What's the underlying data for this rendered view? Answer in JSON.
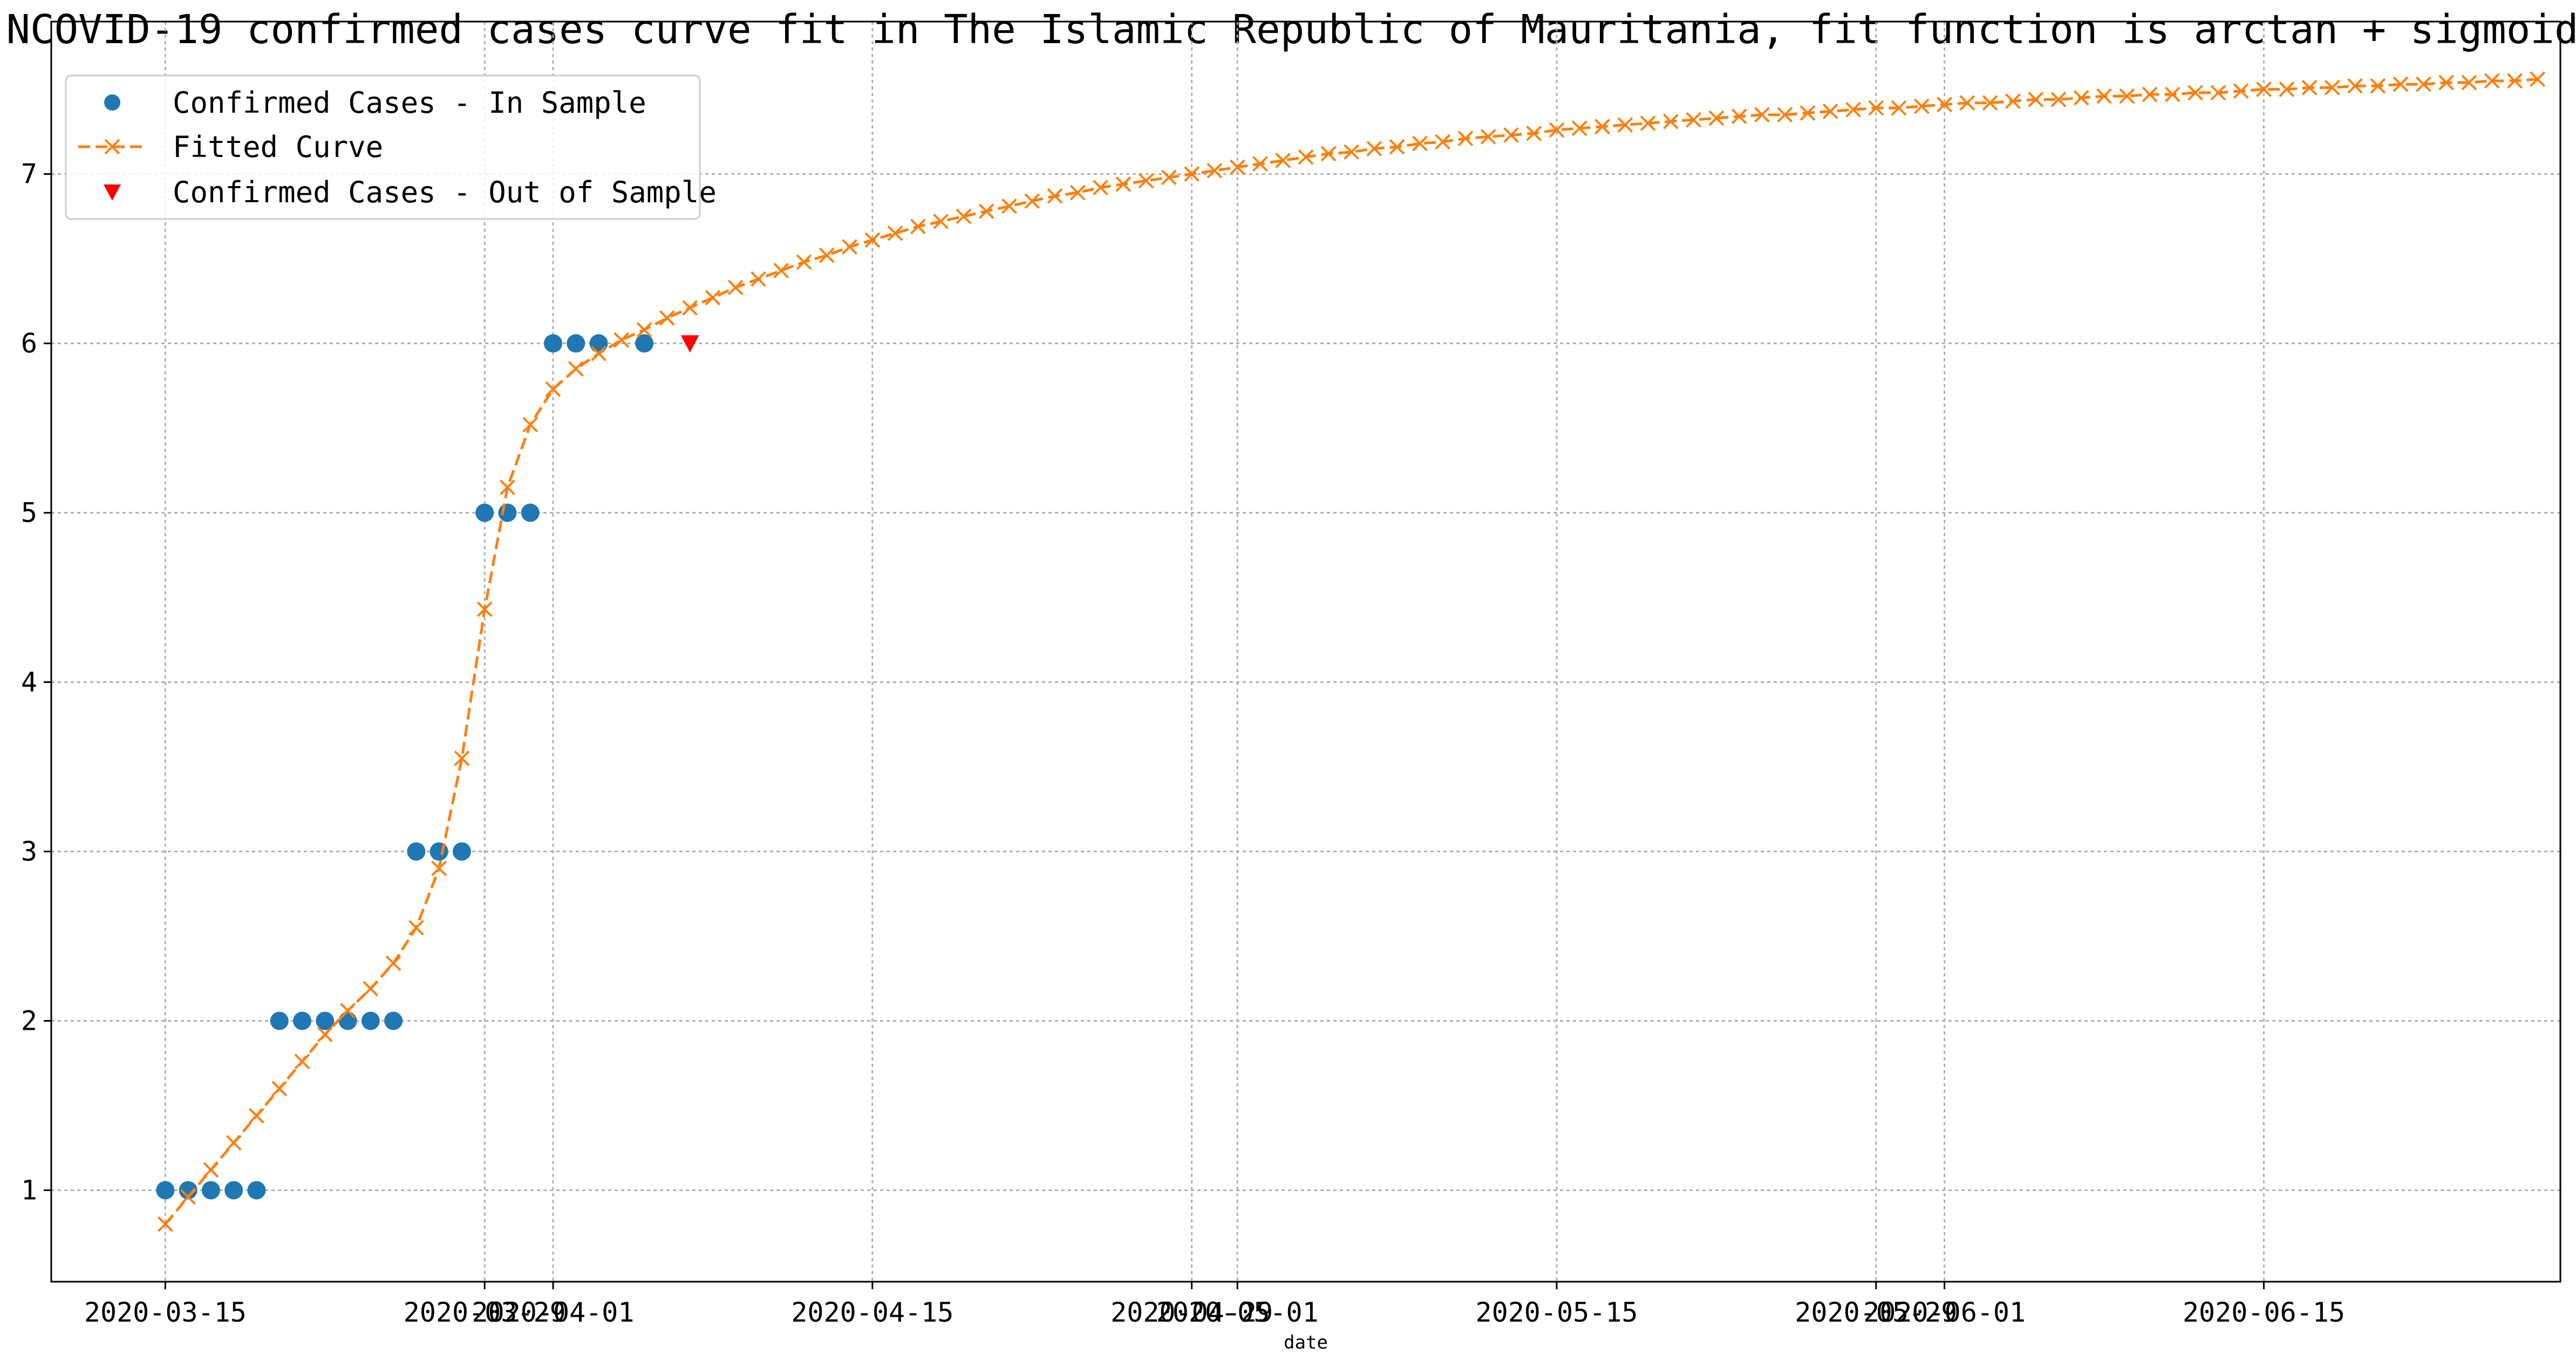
{
  "chart_data": {
    "type": "line",
    "title": "NCOVID-19 confirmed cases curve fit in The Islamic Republic of Mauritania, fit function is arctan + sigmoid",
    "xlabel": "date",
    "ylabel": "",
    "x_tick_labels": [
      "2020-03-15",
      "2020-03-29",
      "2020-04-01",
      "2020-04-15",
      "2020-04-29",
      "2020-05-01",
      "2020-05-15",
      "2020-05-29",
      "2020-06-01",
      "2020-06-15"
    ],
    "x_ticks": [
      "2020-03-15",
      "2020-03-29",
      "2020-04-01",
      "2020-04-15",
      "2020-04-29",
      "2020-05-01",
      "2020-05-15",
      "2020-05-29",
      "2020-06-01",
      "2020-06-15"
    ],
    "xlim": [
      "2020-03-10",
      "2020-06-28"
    ],
    "y_ticks": [
      1,
      2,
      3,
      4,
      5,
      6,
      7
    ],
    "ylim": [
      0.46,
      7.9
    ],
    "grid": true,
    "legend_position": "upper-left",
    "series": [
      {
        "name": "Confirmed Cases - In Sample",
        "kind": "scatter",
        "marker": "circle",
        "color": "#1f77b4",
        "points": [
          [
            "2020-03-15",
            1
          ],
          [
            "2020-03-16",
            1
          ],
          [
            "2020-03-17",
            1
          ],
          [
            "2020-03-18",
            1
          ],
          [
            "2020-03-19",
            1
          ],
          [
            "2020-03-20",
            2
          ],
          [
            "2020-03-21",
            2
          ],
          [
            "2020-03-22",
            2
          ],
          [
            "2020-03-23",
            2
          ],
          [
            "2020-03-24",
            2
          ],
          [
            "2020-03-25",
            2
          ],
          [
            "2020-03-26",
            3
          ],
          [
            "2020-03-27",
            3
          ],
          [
            "2020-03-28",
            3
          ],
          [
            "2020-03-29",
            5
          ],
          [
            "2020-03-30",
            5
          ],
          [
            "2020-03-31",
            5
          ],
          [
            "2020-04-01",
            6
          ],
          [
            "2020-04-02",
            6
          ],
          [
            "2020-04-03",
            6
          ],
          [
            "2020-04-05",
            6
          ]
        ]
      },
      {
        "name": "Fitted Curve",
        "kind": "line",
        "marker": "x",
        "line_style": "dashed",
        "color": "#ff7f0e",
        "x_start": "2020-03-15",
        "x_step_days": 1,
        "values": [
          0.8,
          0.96,
          1.12,
          1.28,
          1.44,
          1.6,
          1.76,
          1.92,
          2.06,
          2.19,
          2.34,
          2.55,
          2.9,
          3.55,
          4.43,
          5.15,
          5.52,
          5.73,
          5.85,
          5.94,
          6.02,
          6.08,
          6.15,
          6.21,
          6.27,
          6.33,
          6.38,
          6.43,
          6.48,
          6.52,
          6.57,
          6.61,
          6.65,
          6.69,
          6.72,
          6.75,
          6.78,
          6.81,
          6.84,
          6.87,
          6.89,
          6.92,
          6.94,
          6.96,
          6.98,
          7.0,
          7.02,
          7.04,
          7.06,
          7.08,
          7.1,
          7.12,
          7.13,
          7.15,
          7.16,
          7.18,
          7.19,
          7.21,
          7.22,
          7.23,
          7.24,
          7.26,
          7.27,
          7.28,
          7.29,
          7.3,
          7.31,
          7.32,
          7.33,
          7.34,
          7.35,
          7.35,
          7.36,
          7.37,
          7.38,
          7.39,
          7.39,
          7.4,
          7.41,
          7.42,
          7.42,
          7.43,
          7.44,
          7.44,
          7.45,
          7.46,
          7.46,
          7.47,
          7.47,
          7.48,
          7.48,
          7.49,
          7.5,
          7.5,
          7.51,
          7.51,
          7.52,
          7.52,
          7.53,
          7.53,
          7.54,
          7.54,
          7.55,
          7.55,
          7.56
        ]
      },
      {
        "name": "Confirmed Cases - Out of Sample",
        "kind": "scatter",
        "marker": "triangle-down",
        "color": "#ff0000",
        "points": [
          [
            "2020-04-07",
            6
          ]
        ]
      }
    ]
  }
}
